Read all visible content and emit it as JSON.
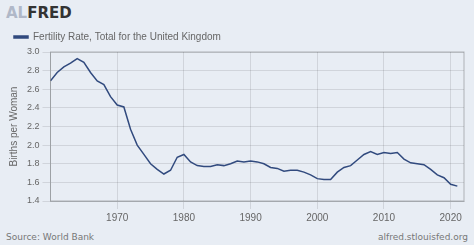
{
  "chart_data": {
    "type": "line",
    "x": [
      1960,
      1961,
      1962,
      1963,
      1964,
      1965,
      1966,
      1967,
      1968,
      1969,
      1970,
      1971,
      1972,
      1973,
      1974,
      1975,
      1976,
      1977,
      1978,
      1979,
      1980,
      1981,
      1982,
      1983,
      1984,
      1985,
      1986,
      1987,
      1988,
      1989,
      1990,
      1991,
      1992,
      1993,
      1994,
      1995,
      1996,
      1997,
      1998,
      1999,
      2000,
      2001,
      2002,
      2003,
      2004,
      2005,
      2006,
      2007,
      2008,
      2009,
      2010,
      2011,
      2012,
      2013,
      2014,
      2015,
      2016,
      2017,
      2018,
      2019,
      2020,
      2021
    ],
    "series": [
      {
        "name": "Fertility Rate, Total for the United Kingdom",
        "color": "#314a7e",
        "values": [
          2.69,
          2.78,
          2.84,
          2.88,
          2.93,
          2.89,
          2.78,
          2.69,
          2.65,
          2.52,
          2.43,
          2.41,
          2.17,
          2.0,
          1.9,
          1.8,
          1.74,
          1.69,
          1.73,
          1.87,
          1.9,
          1.82,
          1.78,
          1.77,
          1.77,
          1.79,
          1.78,
          1.8,
          1.83,
          1.82,
          1.83,
          1.82,
          1.8,
          1.76,
          1.75,
          1.72,
          1.73,
          1.73,
          1.71,
          1.68,
          1.64,
          1.63,
          1.63,
          1.71,
          1.76,
          1.78,
          1.84,
          1.9,
          1.93,
          1.9,
          1.92,
          1.91,
          1.92,
          1.85,
          1.81,
          1.8,
          1.79,
          1.74,
          1.68,
          1.65,
          1.58,
          1.56
        ]
      }
    ],
    "ylabel": "Births per Woman",
    "xlim": [
      1960,
      2022
    ],
    "xticks": [
      1970,
      1980,
      1990,
      2000,
      2010,
      2020
    ],
    "ylim": [
      1.4,
      3.0
    ],
    "yticks": [
      1.4,
      1.6,
      1.8,
      {
        "value": 2.0,
        "label": "2.0"
      },
      2.2,
      2.4,
      2.6,
      2.8,
      {
        "value": 3.0,
        "label": "3.0"
      }
    ],
    "grid": true,
    "legend": "top left",
    "annotations": [
      "AL",
      "FRED",
      "Source: World Bank",
      "alfred.stlouisfed.org"
    ]
  }
}
